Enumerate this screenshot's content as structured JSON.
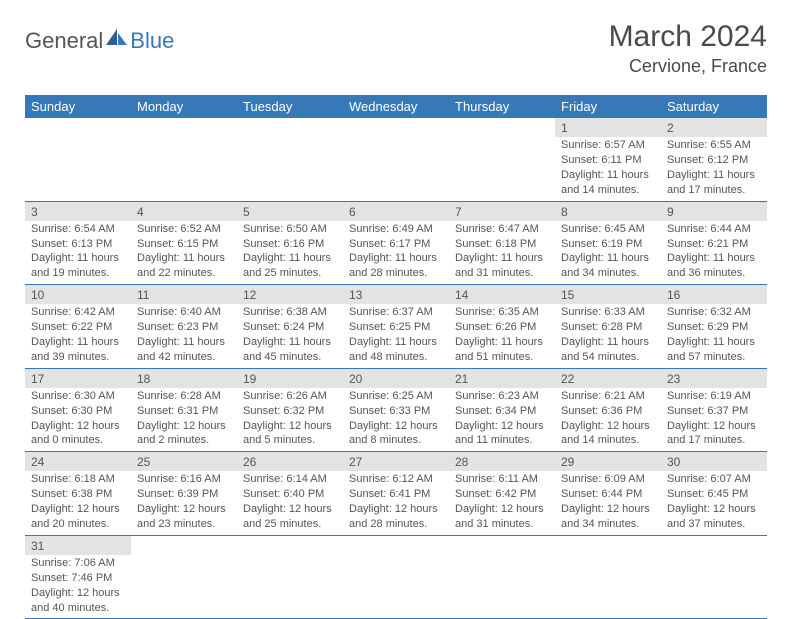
{
  "logo": {
    "general": "General",
    "blue": "Blue"
  },
  "title": "March 2024",
  "location": "Cervione, France",
  "colors": {
    "header_bg": "#3678b8",
    "header_text": "#ffffff",
    "daynum_bg": "#e3e3e3",
    "row_border": "#3678b8",
    "body_text": "#555555",
    "title_text": "#4a4a4a"
  },
  "weekday_headers": [
    "Sunday",
    "Monday",
    "Tuesday",
    "Wednesday",
    "Thursday",
    "Friday",
    "Saturday"
  ],
  "weeks": [
    [
      null,
      null,
      null,
      null,
      null,
      {
        "n": "1",
        "sr": "Sunrise: 6:57 AM",
        "ss": "Sunset: 6:11 PM",
        "d1": "Daylight: 11 hours",
        "d2": "and 14 minutes."
      },
      {
        "n": "2",
        "sr": "Sunrise: 6:55 AM",
        "ss": "Sunset: 6:12 PM",
        "d1": "Daylight: 11 hours",
        "d2": "and 17 minutes."
      }
    ],
    [
      {
        "n": "3",
        "sr": "Sunrise: 6:54 AM",
        "ss": "Sunset: 6:13 PM",
        "d1": "Daylight: 11 hours",
        "d2": "and 19 minutes."
      },
      {
        "n": "4",
        "sr": "Sunrise: 6:52 AM",
        "ss": "Sunset: 6:15 PM",
        "d1": "Daylight: 11 hours",
        "d2": "and 22 minutes."
      },
      {
        "n": "5",
        "sr": "Sunrise: 6:50 AM",
        "ss": "Sunset: 6:16 PM",
        "d1": "Daylight: 11 hours",
        "d2": "and 25 minutes."
      },
      {
        "n": "6",
        "sr": "Sunrise: 6:49 AM",
        "ss": "Sunset: 6:17 PM",
        "d1": "Daylight: 11 hours",
        "d2": "and 28 minutes."
      },
      {
        "n": "7",
        "sr": "Sunrise: 6:47 AM",
        "ss": "Sunset: 6:18 PM",
        "d1": "Daylight: 11 hours",
        "d2": "and 31 minutes."
      },
      {
        "n": "8",
        "sr": "Sunrise: 6:45 AM",
        "ss": "Sunset: 6:19 PM",
        "d1": "Daylight: 11 hours",
        "d2": "and 34 minutes."
      },
      {
        "n": "9",
        "sr": "Sunrise: 6:44 AM",
        "ss": "Sunset: 6:21 PM",
        "d1": "Daylight: 11 hours",
        "d2": "and 36 minutes."
      }
    ],
    [
      {
        "n": "10",
        "sr": "Sunrise: 6:42 AM",
        "ss": "Sunset: 6:22 PM",
        "d1": "Daylight: 11 hours",
        "d2": "and 39 minutes."
      },
      {
        "n": "11",
        "sr": "Sunrise: 6:40 AM",
        "ss": "Sunset: 6:23 PM",
        "d1": "Daylight: 11 hours",
        "d2": "and 42 minutes."
      },
      {
        "n": "12",
        "sr": "Sunrise: 6:38 AM",
        "ss": "Sunset: 6:24 PM",
        "d1": "Daylight: 11 hours",
        "d2": "and 45 minutes."
      },
      {
        "n": "13",
        "sr": "Sunrise: 6:37 AM",
        "ss": "Sunset: 6:25 PM",
        "d1": "Daylight: 11 hours",
        "d2": "and 48 minutes."
      },
      {
        "n": "14",
        "sr": "Sunrise: 6:35 AM",
        "ss": "Sunset: 6:26 PM",
        "d1": "Daylight: 11 hours",
        "d2": "and 51 minutes."
      },
      {
        "n": "15",
        "sr": "Sunrise: 6:33 AM",
        "ss": "Sunset: 6:28 PM",
        "d1": "Daylight: 11 hours",
        "d2": "and 54 minutes."
      },
      {
        "n": "16",
        "sr": "Sunrise: 6:32 AM",
        "ss": "Sunset: 6:29 PM",
        "d1": "Daylight: 11 hours",
        "d2": "and 57 minutes."
      }
    ],
    [
      {
        "n": "17",
        "sr": "Sunrise: 6:30 AM",
        "ss": "Sunset: 6:30 PM",
        "d1": "Daylight: 12 hours",
        "d2": "and 0 minutes."
      },
      {
        "n": "18",
        "sr": "Sunrise: 6:28 AM",
        "ss": "Sunset: 6:31 PM",
        "d1": "Daylight: 12 hours",
        "d2": "and 2 minutes."
      },
      {
        "n": "19",
        "sr": "Sunrise: 6:26 AM",
        "ss": "Sunset: 6:32 PM",
        "d1": "Daylight: 12 hours",
        "d2": "and 5 minutes."
      },
      {
        "n": "20",
        "sr": "Sunrise: 6:25 AM",
        "ss": "Sunset: 6:33 PM",
        "d1": "Daylight: 12 hours",
        "d2": "and 8 minutes."
      },
      {
        "n": "21",
        "sr": "Sunrise: 6:23 AM",
        "ss": "Sunset: 6:34 PM",
        "d1": "Daylight: 12 hours",
        "d2": "and 11 minutes."
      },
      {
        "n": "22",
        "sr": "Sunrise: 6:21 AM",
        "ss": "Sunset: 6:36 PM",
        "d1": "Daylight: 12 hours",
        "d2": "and 14 minutes."
      },
      {
        "n": "23",
        "sr": "Sunrise: 6:19 AM",
        "ss": "Sunset: 6:37 PM",
        "d1": "Daylight: 12 hours",
        "d2": "and 17 minutes."
      }
    ],
    [
      {
        "n": "24",
        "sr": "Sunrise: 6:18 AM",
        "ss": "Sunset: 6:38 PM",
        "d1": "Daylight: 12 hours",
        "d2": "and 20 minutes."
      },
      {
        "n": "25",
        "sr": "Sunrise: 6:16 AM",
        "ss": "Sunset: 6:39 PM",
        "d1": "Daylight: 12 hours",
        "d2": "and 23 minutes."
      },
      {
        "n": "26",
        "sr": "Sunrise: 6:14 AM",
        "ss": "Sunset: 6:40 PM",
        "d1": "Daylight: 12 hours",
        "d2": "and 25 minutes."
      },
      {
        "n": "27",
        "sr": "Sunrise: 6:12 AM",
        "ss": "Sunset: 6:41 PM",
        "d1": "Daylight: 12 hours",
        "d2": "and 28 minutes."
      },
      {
        "n": "28",
        "sr": "Sunrise: 6:11 AM",
        "ss": "Sunset: 6:42 PM",
        "d1": "Daylight: 12 hours",
        "d2": "and 31 minutes."
      },
      {
        "n": "29",
        "sr": "Sunrise: 6:09 AM",
        "ss": "Sunset: 6:44 PM",
        "d1": "Daylight: 12 hours",
        "d2": "and 34 minutes."
      },
      {
        "n": "30",
        "sr": "Sunrise: 6:07 AM",
        "ss": "Sunset: 6:45 PM",
        "d1": "Daylight: 12 hours",
        "d2": "and 37 minutes."
      }
    ],
    [
      {
        "n": "31",
        "sr": "Sunrise: 7:06 AM",
        "ss": "Sunset: 7:46 PM",
        "d1": "Daylight: 12 hours",
        "d2": "and 40 minutes."
      },
      null,
      null,
      null,
      null,
      null,
      null
    ]
  ]
}
